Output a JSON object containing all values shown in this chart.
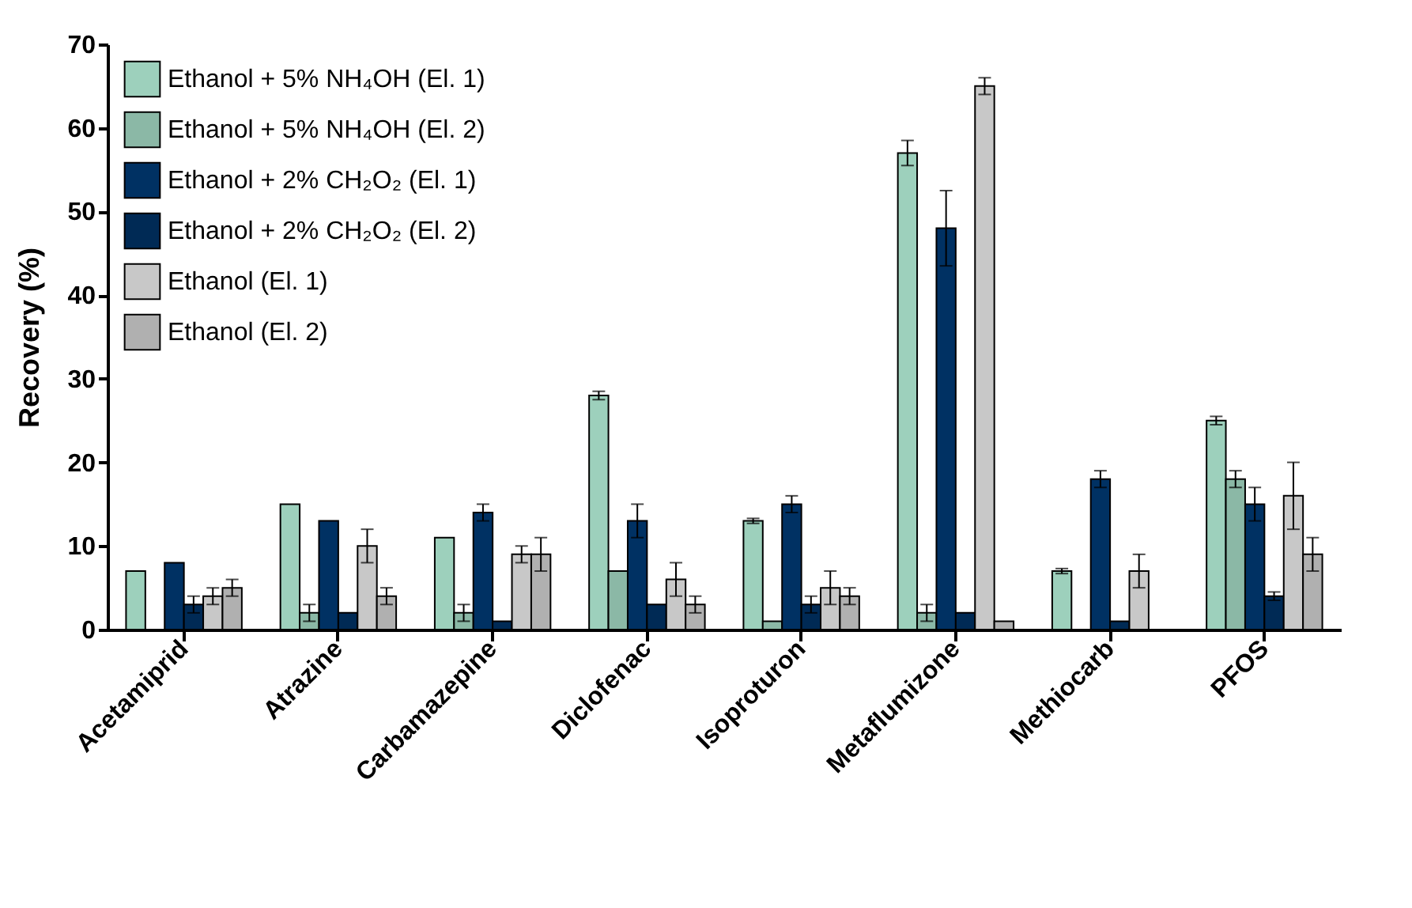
{
  "chart_data": {
    "type": "bar",
    "ylabel": "Recovery (%)",
    "categories": [
      "Acetamiprid",
      "Atrazine",
      "Carbamazepine",
      "Diclofenac",
      "Isoproturon",
      "Metaflumizone",
      "Methiocarb",
      "PFOS"
    ],
    "series": [
      {
        "name": "Ethanol + 5% NH₄OH (El. 1)",
        "color": "#9dd0bc",
        "values": [
          7,
          15,
          11,
          28,
          13,
          57,
          7,
          25
        ],
        "errors": [
          null,
          null,
          null,
          0.5,
          0.3,
          1.5,
          0.3,
          0.5
        ]
      },
      {
        "name": "Ethanol + 5% NH₄OH (El. 2)",
        "color": "#8bb8a6",
        "values": [
          null,
          2,
          2,
          7,
          1,
          2,
          null,
          18
        ],
        "errors": [
          null,
          1,
          1,
          null,
          null,
          1,
          null,
          1
        ]
      },
      {
        "name": "Ethanol + 2% CH₂O₂ (El. 1)",
        "color": "#003163",
        "values": [
          8,
          13,
          14,
          13,
          15,
          48,
          18,
          15
        ],
        "errors": [
          null,
          null,
          1,
          2,
          1,
          4.5,
          1,
          2
        ]
      },
      {
        "name": "Ethanol + 2% CH₂O₂ (El. 2)",
        "color": "#002a55",
        "values": [
          3,
          2,
          1,
          3,
          3,
          2,
          1,
          4
        ],
        "errors": [
          1,
          null,
          null,
          null,
          1,
          null,
          null,
          0.5
        ]
      },
      {
        "name": "Ethanol (El. 1)",
        "color": "#c8c8c8",
        "values": [
          4,
          10,
          9,
          6,
          5,
          65,
          7,
          16
        ],
        "errors": [
          1,
          2,
          1,
          2,
          2,
          1,
          2,
          4
        ]
      },
      {
        "name": "Ethanol (El. 2)",
        "color": "#b0b0b0",
        "values": [
          5,
          4,
          9,
          3,
          4,
          1,
          null,
          9
        ],
        "errors": [
          1,
          1,
          2,
          1,
          1,
          null,
          null,
          2
        ]
      }
    ],
    "ylim": [
      0,
      70
    ],
    "yticks": [
      0,
      10,
      20,
      30,
      40,
      50,
      60,
      70
    ],
    "legend": "top left",
    "grid": false
  }
}
